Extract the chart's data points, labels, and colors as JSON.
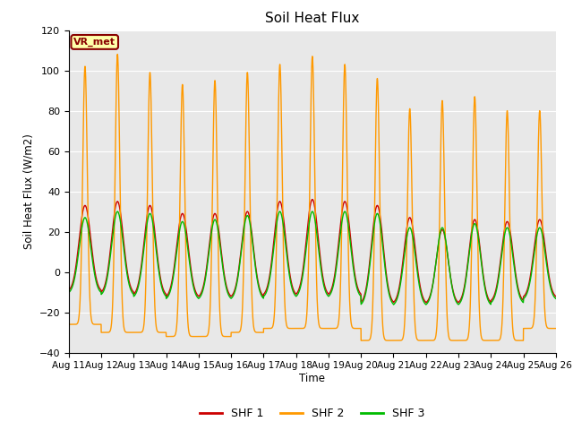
{
  "title": "Soil Heat Flux",
  "ylabel": "Soil Heat Flux (W/m2)",
  "xlabel": "Time",
  "ylim": [
    -40,
    120
  ],
  "yticks": [
    -40,
    -20,
    0,
    20,
    40,
    60,
    80,
    100,
    120
  ],
  "legend_labels": [
    "SHF 1",
    "SHF 2",
    "SHF 3"
  ],
  "legend_colors": [
    "#cc0000",
    "#ff9900",
    "#00bb00"
  ],
  "annotation_text": "VR_met",
  "annotation_color": "#880000",
  "annotation_bg": "#ffffaa",
  "bg_color": "#e8e8e8",
  "n_days": 15,
  "start_day": 11,
  "shf1_peaks": [
    33,
    35,
    33,
    29,
    29,
    30,
    35,
    36,
    35,
    33,
    27,
    21,
    26,
    25,
    26
  ],
  "shf1_troughs": [
    -10,
    -11,
    -12,
    -13,
    -13,
    -13,
    -12,
    -12,
    -12,
    -16,
    -16,
    -16,
    -16,
    -15,
    -13
  ],
  "shf2_peaks": [
    102,
    108,
    99,
    93,
    95,
    99,
    103,
    107,
    103,
    96,
    81,
    85,
    87,
    80,
    80
  ],
  "shf2_troughs": [
    -26,
    -30,
    -30,
    -32,
    -32,
    -30,
    -28,
    -28,
    -28,
    -34,
    -34,
    -34,
    -34,
    -34,
    -28
  ],
  "shf3_peaks": [
    27,
    30,
    29,
    25,
    26,
    28,
    30,
    30,
    30,
    29,
    22,
    22,
    24,
    22,
    22
  ],
  "shf3_troughs": [
    -11,
    -12,
    -13,
    -14,
    -14,
    -14,
    -13,
    -13,
    -13,
    -17,
    -17,
    -17,
    -17,
    -16,
    -14
  ],
  "points_per_day": 288
}
